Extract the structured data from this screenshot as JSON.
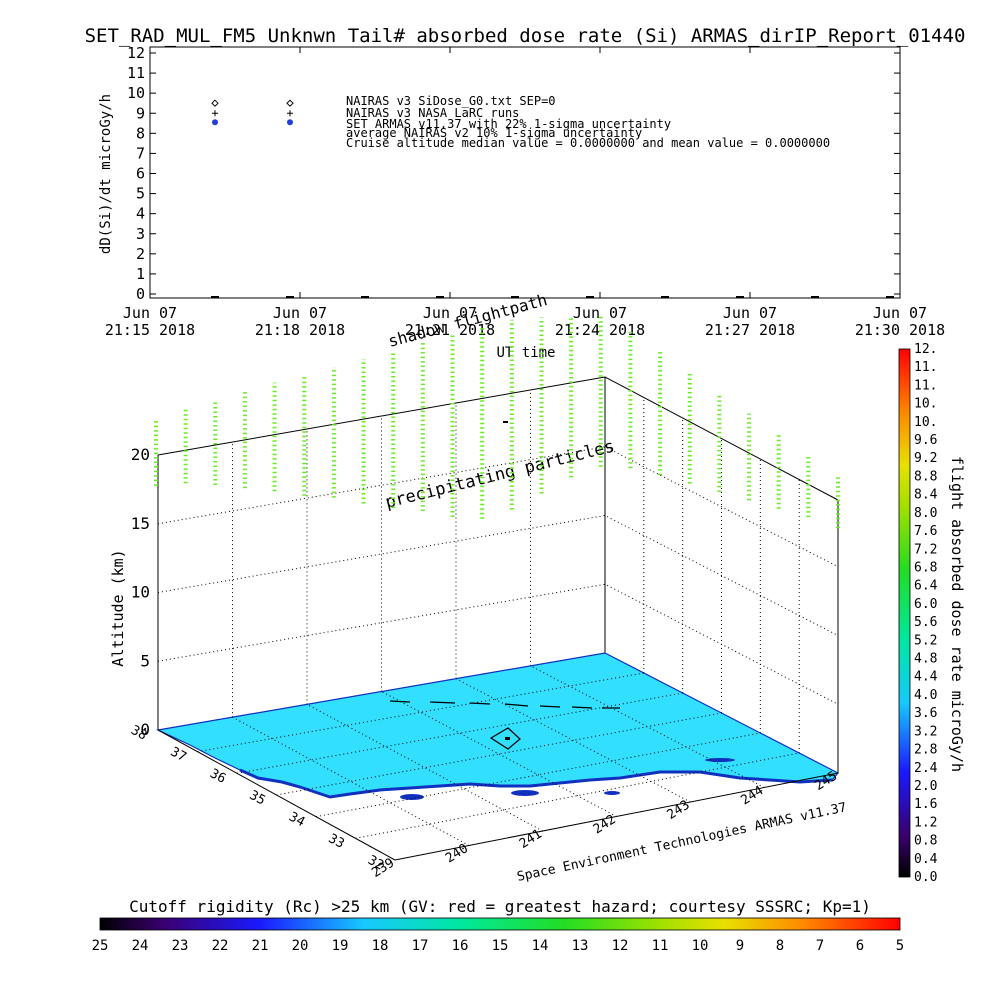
{
  "title": "SET_RAD_MUL_FM5 Unknwn Tail#  absorbed dose rate (Si) ARMAS_dirIP_Report_01440",
  "colors": {
    "diamond": "#000000",
    "plus": "#000000",
    "armas_point": "#1f3fd6",
    "surface": "#33dfff",
    "coast": "#1030c0",
    "trace": "#66ee22"
  },
  "chart_data": [
    {
      "type": "scatter",
      "ylabel": "dD(Si)/dt microGy/h",
      "ylim": [
        0,
        12
      ],
      "yticks": [
        "0",
        "1",
        "2",
        "3",
        "4",
        "5",
        "6",
        "7",
        "8",
        "9",
        "10",
        "11",
        "12"
      ],
      "xticks": [
        {
          "day": "Jun 07",
          "time": "21:15 2018"
        },
        {
          "day": "Jun 07",
          "time": "21:18 2018"
        },
        {
          "day": "Jun 07",
          "time": "21:21 2018"
        },
        {
          "day": "Jun 07",
          "time": "21:24 2018"
        },
        {
          "day": "Jun 07",
          "time": "21:27 2018"
        },
        {
          "day": "Jun 07",
          "time": "21:30 2018"
        }
      ],
      "xlim_minutes": [
        0,
        15
      ],
      "legend": [
        "NAIRAS v3 SiDose_G0.txt SEP=0",
        "NAIRAS v3 NASA LaRC runs",
        "SET ARMAS v11.37 with 22% 1-sigma uncertainty",
        "average NAIRAS v2 10% 1-sigma uncertainty",
        "Cruise altitude median value = 0.0000000 and mean value = 0.0000000"
      ],
      "series": [
        {
          "marker": "diamond",
          "x_minutes": [
            1.3,
            2.8
          ],
          "y": [
            9.5,
            9.5
          ]
        },
        {
          "marker": "plus",
          "x_minutes": [
            1.3,
            2.8
          ],
          "y": [
            9.0,
            9.0
          ]
        },
        {
          "marker": "filled-circle",
          "x_minutes": [
            1.3,
            2.8
          ],
          "y": [
            8.55,
            8.55
          ]
        },
        {
          "marker": "dash",
          "x_minutes": [
            1.3,
            2.8,
            4.3,
            5.8,
            7.3,
            8.8,
            10.3,
            11.8,
            13.3,
            14.8
          ],
          "y": [
            0,
            0,
            0,
            0,
            0,
            0,
            0,
            0,
            0,
            0
          ]
        }
      ]
    },
    {
      "type": "3d-trajectory",
      "flightpath_label": "shadow flightpath",
      "xlabel": "UT time",
      "annotation": "precipitating particles",
      "zlabel": "Altitude (km)",
      "zticks": [
        "0",
        "5",
        "10",
        "15",
        "20"
      ],
      "zlim": [
        0,
        22
      ],
      "lat_ticks": [
        "32",
        "33",
        "34",
        "35",
        "36",
        "37",
        "38"
      ],
      "lon_ticks": [
        "239",
        "240",
        "241",
        "242",
        "243",
        "244",
        "245"
      ],
      "credit": "Space Environment Technologies ARMAS v11.37",
      "traces": {
        "count": 24,
        "altitude_bottom_km": [
          17.8,
          17.6,
          17.1,
          16.5,
          15.9,
          15.2,
          14.7,
          13.9,
          13.2,
          12.6,
          11.8,
          11.3,
          11.6,
          12.4,
          13.2,
          13.6,
          14.4,
          15.0,
          15.5,
          16.0,
          16.5,
          17.0,
          17.5,
          17.8
        ],
        "altitude_top_km": [
          22.5,
          23.0,
          23.2,
          23.5,
          23.8,
          24.0,
          24.2,
          24.4,
          24.6,
          24.9,
          25.1,
          25.3,
          25.4,
          25.2,
          24.8,
          24.6,
          24.3,
          24.0,
          23.6,
          23.2,
          22.8,
          22.4,
          22.0,
          21.5
        ]
      }
    },
    {
      "type": "colorbar",
      "label": "flight absorbed dose rate microGy/h",
      "ticks": [
        "0.0",
        "0.4",
        "0.8",
        "1.2",
        "1.6",
        "2.0",
        "2.4",
        "2.8",
        "3.2",
        "3.6",
        "4.0",
        "4.4",
        "4.8",
        "5.2",
        "5.6",
        "6.0",
        "6.4",
        "6.8",
        "7.2",
        "7.6",
        "8.0",
        "8.4",
        "8.8",
        "9.2",
        "9.6",
        "10.",
        "10.",
        "11.",
        "11.",
        "12."
      ],
      "range": [
        0,
        12
      ]
    },
    {
      "type": "colorbar",
      "label": "Cutoff rigidity (Rc) >25 km (GV: red = greatest hazard; courtesy SSSRC; Kp=1)",
      "ticks": [
        "25",
        "24",
        "23",
        "22",
        "21",
        "20",
        "19",
        "18",
        "17",
        "16",
        "15",
        "14",
        "13",
        "12",
        "11",
        "10",
        "9",
        "8",
        "7",
        "6",
        "5"
      ],
      "range": [
        25,
        5
      ]
    }
  ]
}
